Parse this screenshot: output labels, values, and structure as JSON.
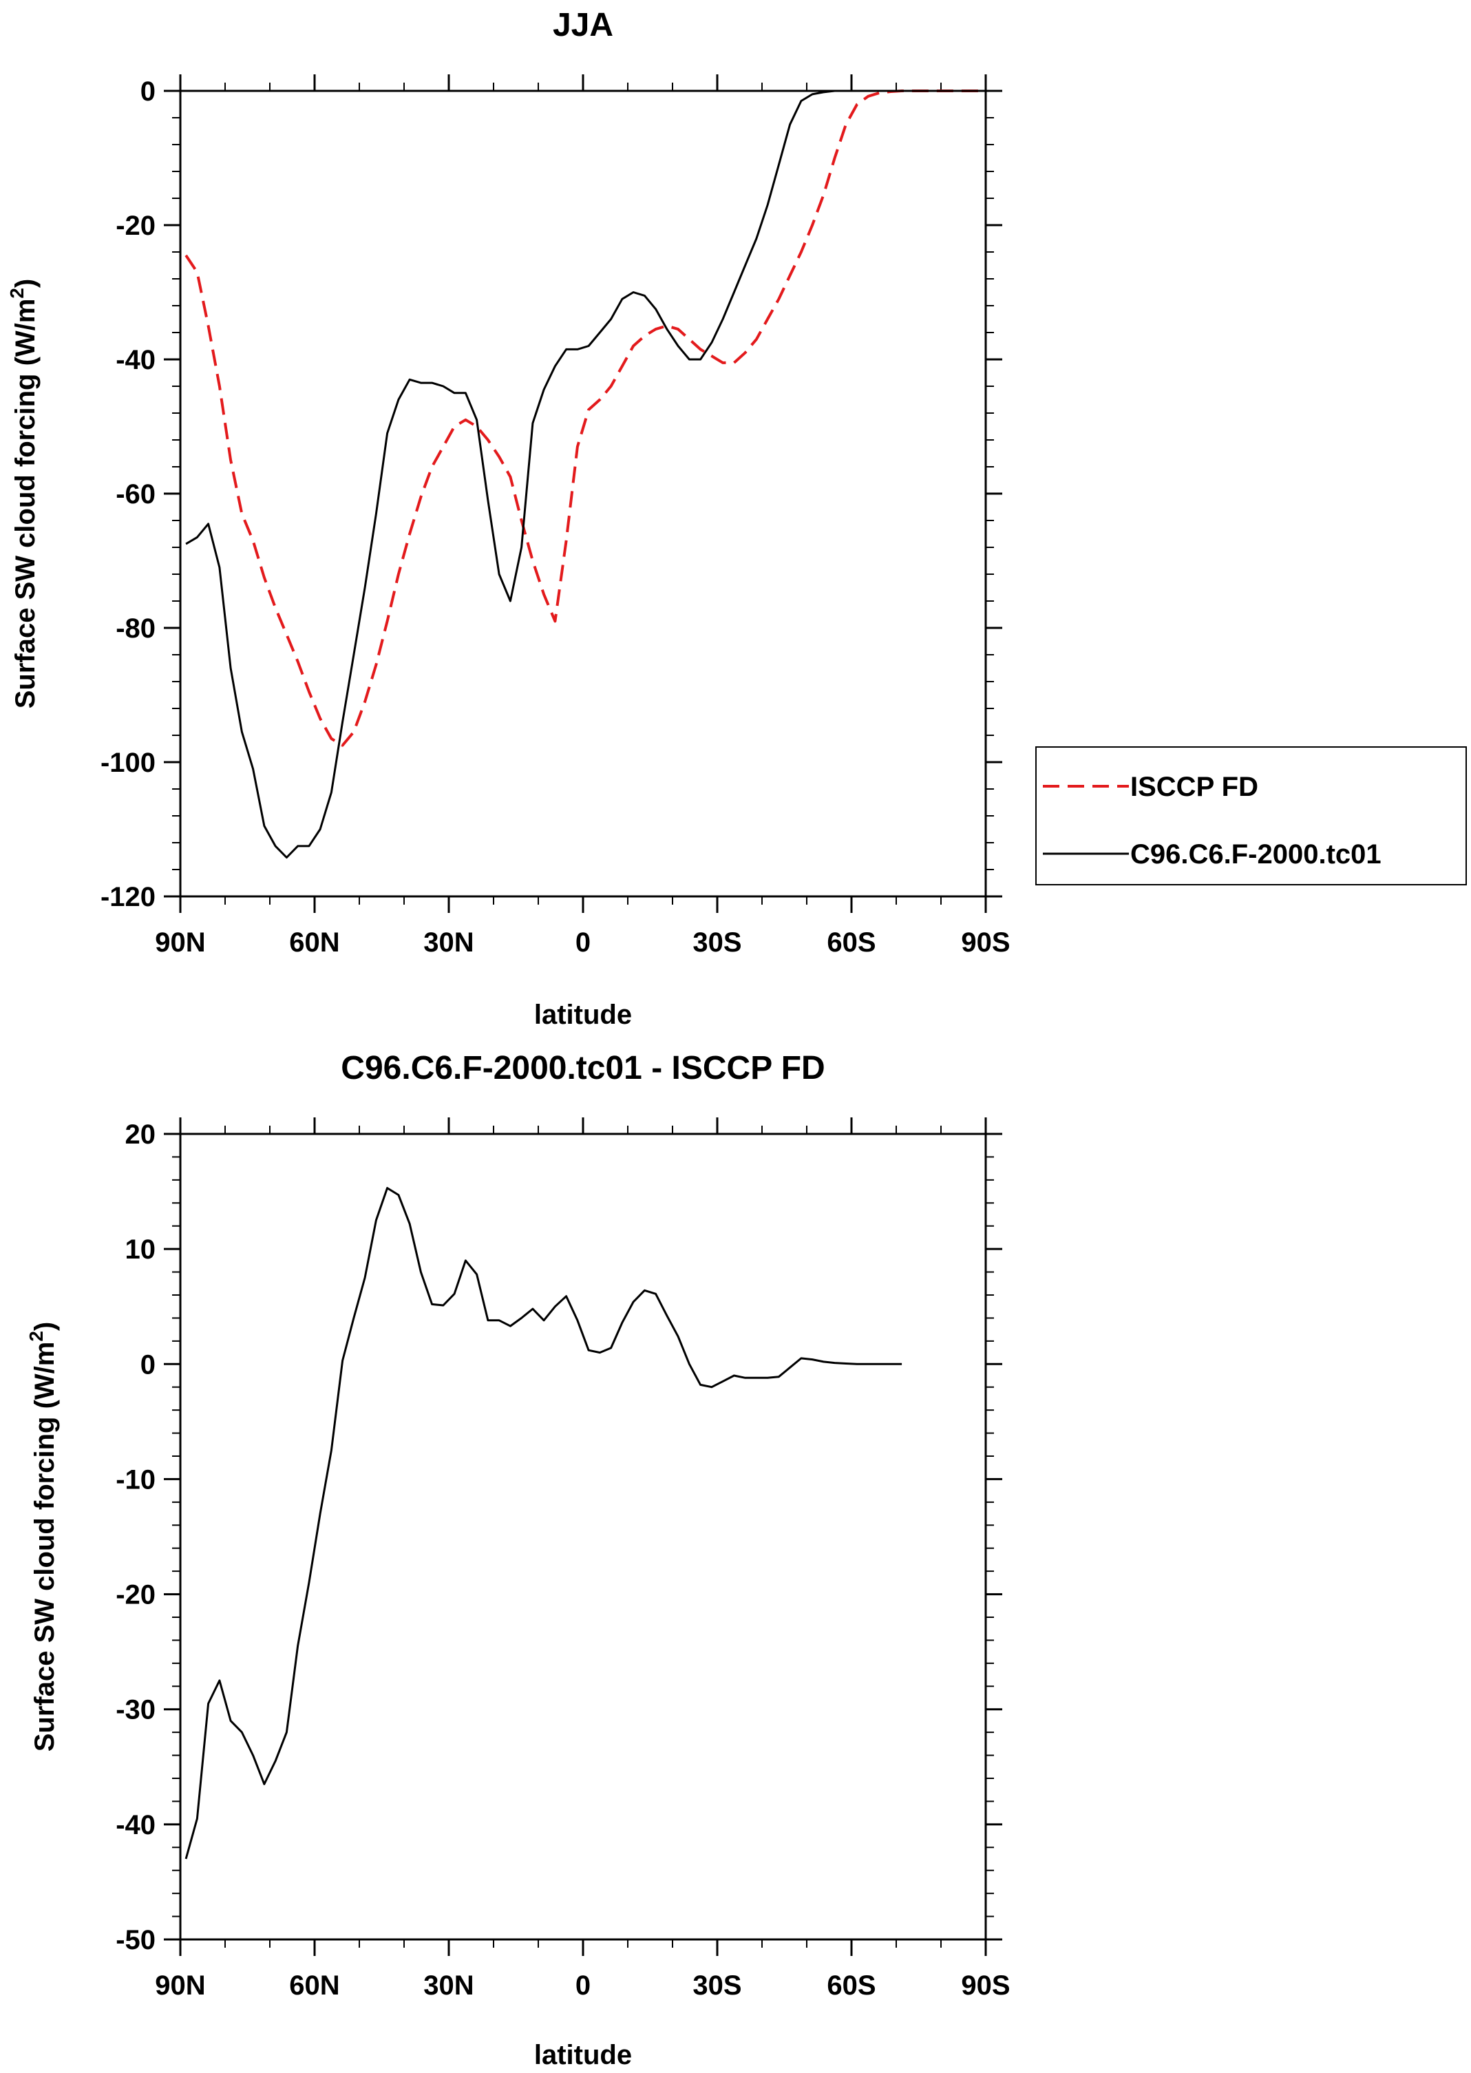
{
  "chart_data": [
    {
      "type": "line",
      "title": "JJA",
      "xlabel": "latitude",
      "ylabel_main": "Surface SW cloud forcing (W/m",
      "ylabel_sup": "2",
      "ylabel_end": ")",
      "xlim": [
        90,
        -90
      ],
      "ylim": [
        -120,
        0
      ],
      "xticks": [
        {
          "value": 90,
          "label": "90N"
        },
        {
          "value": 60,
          "label": "60N"
        },
        {
          "value": 30,
          "label": "30N"
        },
        {
          "value": 0,
          "label": "0"
        },
        {
          "value": -30,
          "label": "30S"
        },
        {
          "value": -60,
          "label": "60S"
        },
        {
          "value": -90,
          "label": "90S"
        }
      ],
      "yticks": [
        {
          "value": 0,
          "label": "0"
        },
        {
          "value": -20,
          "label": "-20"
        },
        {
          "value": -40,
          "label": "-40"
        },
        {
          "value": -60,
          "label": "-60"
        },
        {
          "value": -80,
          "label": "-80"
        },
        {
          "value": -100,
          "label": "-100"
        },
        {
          "value": -120,
          "label": "-120"
        }
      ],
      "legend": [
        {
          "name": "ISCCP FD",
          "color": "#e31a1c",
          "dash": true
        },
        {
          "name": "C96.C6.F-2000.tc01",
          "color": "#000000",
          "dash": false
        }
      ],
      "series": [
        {
          "name": "ISCCP FD",
          "color": "#e31a1c",
          "dash": true,
          "points": [
            [
              88.75,
              -24.5
            ],
            [
              86.25,
              -27
            ],
            [
              83.75,
              -35
            ],
            [
              81.25,
              -44
            ],
            [
              78.75,
              -55
            ],
            [
              76.25,
              -63
            ],
            [
              73.75,
              -67
            ],
            [
              71.25,
              -72.5
            ],
            [
              68.75,
              -77
            ],
            [
              66.25,
              -81
            ],
            [
              63.75,
              -85
            ],
            [
              61.25,
              -89.5
            ],
            [
              58.75,
              -93.5
            ],
            [
              56.25,
              -96.5
            ],
            [
              53.75,
              -97.5
            ],
            [
              51.25,
              -95.5
            ],
            [
              48.75,
              -91
            ],
            [
              46.25,
              -85.5
            ],
            [
              43.75,
              -79
            ],
            [
              41.25,
              -72
            ],
            [
              38.75,
              -66
            ],
            [
              36.25,
              -60.5
            ],
            [
              33.75,
              -56
            ],
            [
              31.25,
              -53
            ],
            [
              28.75,
              -50
            ],
            [
              26.25,
              -49
            ],
            [
              23.75,
              -50
            ],
            [
              21.25,
              -52
            ],
            [
              18.75,
              -54.5
            ],
            [
              16.25,
              -57.5
            ],
            [
              13.75,
              -64
            ],
            [
              11.25,
              -70
            ],
            [
              8.75,
              -75
            ],
            [
              6.25,
              -79
            ],
            [
              3.75,
              -67
            ],
            [
              1.25,
              -53
            ],
            [
              -1.25,
              -47.5
            ],
            [
              -3.75,
              -46
            ],
            [
              -6.25,
              -44
            ],
            [
              -8.75,
              -41
            ],
            [
              -11.25,
              -38
            ],
            [
              -13.75,
              -36.5
            ],
            [
              -16.25,
              -35.5
            ],
            [
              -18.75,
              -35
            ],
            [
              -21.25,
              -35.5
            ],
            [
              -23.75,
              -37
            ],
            [
              -26.25,
              -38.5
            ],
            [
              -28.75,
              -39.5
            ],
            [
              -31.25,
              -40.5
            ],
            [
              -33.75,
              -40.5
            ],
            [
              -36.25,
              -39
            ],
            [
              -38.75,
              -37
            ],
            [
              -41.25,
              -34
            ],
            [
              -43.75,
              -31
            ],
            [
              -46.25,
              -27.5
            ],
            [
              -48.75,
              -24
            ],
            [
              -51.25,
              -20
            ],
            [
              -53.75,
              -15.5
            ],
            [
              -56.25,
              -10
            ],
            [
              -58.75,
              -5
            ],
            [
              -61.25,
              -2
            ],
            [
              -63.75,
              -0.8
            ],
            [
              -66.25,
              -0.3
            ],
            [
              -68.75,
              -0.1
            ],
            [
              -71.25,
              0
            ],
            [
              -73.75,
              0
            ],
            [
              -76.25,
              0
            ],
            [
              -78.75,
              0
            ],
            [
              -81.25,
              0
            ],
            [
              -83.75,
              0
            ],
            [
              -86.25,
              0
            ],
            [
              -88.75,
              0
            ]
          ]
        },
        {
          "name": "C96.C6.F-2000.tc01",
          "color": "#000000",
          "dash": false,
          "points": [
            [
              88.75,
              -67.5
            ],
            [
              86.25,
              -66.5
            ],
            [
              83.75,
              -64.5
            ],
            [
              81.25,
              -71
            ],
            [
              78.75,
              -86
            ],
            [
              76.25,
              -95.5
            ],
            [
              73.75,
              -101
            ],
            [
              71.25,
              -109.5
            ],
            [
              68.75,
              -112.5
            ],
            [
              66.25,
              -114.2
            ],
            [
              63.75,
              -112.5
            ],
            [
              61.25,
              -112.5
            ],
            [
              58.75,
              -110
            ],
            [
              56.25,
              -104.5
            ],
            [
              53.75,
              -94
            ],
            [
              51.25,
              -84
            ],
            [
              48.75,
              -74
            ],
            [
              46.25,
              -63
            ],
            [
              43.75,
              -51
            ],
            [
              41.25,
              -46
            ],
            [
              38.75,
              -43
            ],
            [
              36.25,
              -43.5
            ],
            [
              33.75,
              -43.5
            ],
            [
              31.25,
              -44
            ],
            [
              28.75,
              -45
            ],
            [
              26.25,
              -45
            ],
            [
              23.75,
              -49
            ],
            [
              21.25,
              -61
            ],
            [
              18.75,
              -72
            ],
            [
              16.25,
              -76
            ],
            [
              13.75,
              -68
            ],
            [
              11.25,
              -49.5
            ],
            [
              8.75,
              -44.5
            ],
            [
              6.25,
              -41
            ],
            [
              3.75,
              -38.5
            ],
            [
              1.25,
              -38.5
            ],
            [
              -1.25,
              -38
            ],
            [
              -3.75,
              -36
            ],
            [
              -6.25,
              -34
            ],
            [
              -8.75,
              -31
            ],
            [
              -11.25,
              -30
            ],
            [
              -13.75,
              -30.5
            ],
            [
              -16.25,
              -32.5
            ],
            [
              -18.75,
              -35.5
            ],
            [
              -21.25,
              -38
            ],
            [
              -23.75,
              -40
            ],
            [
              -26.25,
              -40
            ],
            [
              -28.75,
              -37.5
            ],
            [
              -31.25,
              -34
            ],
            [
              -33.75,
              -30
            ],
            [
              -36.25,
              -26
            ],
            [
              -38.75,
              -22
            ],
            [
              -41.25,
              -17
            ],
            [
              -43.75,
              -11
            ],
            [
              -46.25,
              -5
            ],
            [
              -48.75,
              -1.5
            ],
            [
              -51.25,
              -0.5
            ],
            [
              -53.75,
              -0.2
            ],
            [
              -56.25,
              0
            ],
            [
              -58.75,
              0
            ],
            [
              -61.25,
              0
            ],
            [
              -63.75,
              0
            ],
            [
              -66.25,
              0
            ],
            [
              -68.75,
              0
            ],
            [
              -71.25,
              0
            ],
            [
              -73.75,
              0
            ],
            [
              -76.25,
              0
            ],
            [
              -78.75,
              0
            ],
            [
              -81.25,
              0
            ],
            [
              -83.75,
              0
            ],
            [
              -86.25,
              0
            ],
            [
              -88.75,
              0
            ]
          ]
        }
      ]
    },
    {
      "type": "line",
      "title": "C96.C6.F-2000.tc01 - ISCCP FD",
      "xlabel": "latitude",
      "ylabel_main": "Surface SW cloud forcing (W/m",
      "ylabel_sup": "2",
      "ylabel_end": ")",
      "xlim": [
        90,
        -90
      ],
      "ylim": [
        -50,
        20
      ],
      "xticks": [
        {
          "value": 90,
          "label": "90N"
        },
        {
          "value": 60,
          "label": "60N"
        },
        {
          "value": 30,
          "label": "30N"
        },
        {
          "value": 0,
          "label": "0"
        },
        {
          "value": -30,
          "label": "30S"
        },
        {
          "value": -60,
          "label": "60S"
        },
        {
          "value": -90,
          "label": "90S"
        }
      ],
      "yticks": [
        {
          "value": 20,
          "label": "20"
        },
        {
          "value": 10,
          "label": "10"
        },
        {
          "value": 0,
          "label": "0"
        },
        {
          "value": -10,
          "label": "-10"
        },
        {
          "value": -20,
          "label": "-20"
        },
        {
          "value": -30,
          "label": "-30"
        },
        {
          "value": -40,
          "label": "-40"
        },
        {
          "value": -50,
          "label": "-50"
        }
      ],
      "series": [
        {
          "name": "C96.C6.F-2000.tc01 - ISCCP FD",
          "color": "#000000",
          "dash": false,
          "points": [
            [
              88.75,
              -43
            ],
            [
              86.25,
              -39.5
            ],
            [
              83.75,
              -29.5
            ],
            [
              81.25,
              -27.5
            ],
            [
              78.75,
              -31
            ],
            [
              76.25,
              -32
            ],
            [
              73.75,
              -34
            ],
            [
              71.25,
              -36.5
            ],
            [
              68.75,
              -34.5
            ],
            [
              66.25,
              -32
            ],
            [
              63.75,
              -24.5
            ],
            [
              61.25,
              -19
            ],
            [
              58.75,
              -13
            ],
            [
              56.25,
              -7.5
            ],
            [
              53.75,
              0.3
            ],
            [
              51.25,
              4
            ],
            [
              48.75,
              7.5
            ],
            [
              46.25,
              12.5
            ],
            [
              43.75,
              15.3
            ],
            [
              41.25,
              14.7
            ],
            [
              38.75,
              12.2
            ],
            [
              36.25,
              8
            ],
            [
              33.75,
              5.2
            ],
            [
              31.25,
              5.1
            ],
            [
              28.75,
              6.1
            ],
            [
              26.25,
              9
            ],
            [
              23.75,
              7.8
            ],
            [
              21.25,
              3.8
            ],
            [
              18.75,
              3.8
            ],
            [
              16.25,
              3.3
            ],
            [
              13.75,
              4
            ],
            [
              11.25,
              4.8
            ],
            [
              8.75,
              3.8
            ],
            [
              6.25,
              5
            ],
            [
              3.75,
              5.9
            ],
            [
              1.25,
              3.8
            ],
            [
              -1.25,
              1.2
            ],
            [
              -3.75,
              1
            ],
            [
              -6.25,
              1.4
            ],
            [
              -8.75,
              3.6
            ],
            [
              -11.25,
              5.4
            ],
            [
              -13.75,
              6.4
            ],
            [
              -16.25,
              6.1
            ],
            [
              -18.75,
              4.2
            ],
            [
              -21.25,
              2.4
            ],
            [
              -23.75,
              0
            ],
            [
              -26.25,
              -1.8
            ],
            [
              -28.75,
              -2
            ],
            [
              -31.25,
              -1.5
            ],
            [
              -33.75,
              -1
            ],
            [
              -36.25,
              -1.2
            ],
            [
              -38.75,
              -1.2
            ],
            [
              -41.25,
              -1.2
            ],
            [
              -43.75,
              -1.1
            ],
            [
              -46.25,
              -0.3
            ],
            [
              -48.75,
              0.5
            ],
            [
              -51.25,
              0.4
            ],
            [
              -53.75,
              0.2
            ],
            [
              -56.25,
              0.1
            ],
            [
              -58.75,
              0.05
            ],
            [
              -61.25,
              0
            ],
            [
              -63.75,
              0
            ],
            [
              -66.25,
              0
            ],
            [
              -68.75,
              0
            ],
            [
              -71.25,
              0
            ]
          ]
        }
      ]
    }
  ]
}
